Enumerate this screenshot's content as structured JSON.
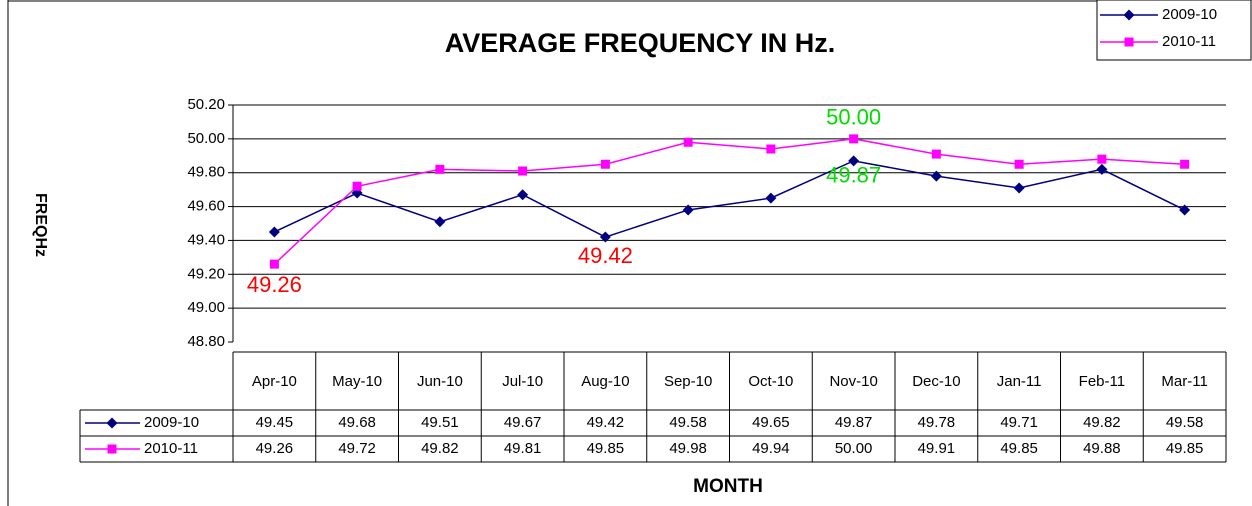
{
  "chart_data": {
    "type": "line",
    "title": "AVERAGE FREQUENCY IN Hz.",
    "x_label": "MONTH",
    "y_label": "FREQHz",
    "categories": [
      "Apr-10",
      "May-10",
      "Jun-10",
      "Jul-10",
      "Aug-10",
      "Sep-10",
      "Oct-10",
      "Nov-10",
      "Dec-10",
      "Jan-11",
      "Feb-11",
      "Mar-11"
    ],
    "series": [
      {
        "name": "2009-10",
        "color": "#000080",
        "marker": "diamond",
        "values": [
          49.45,
          49.68,
          49.51,
          49.67,
          49.42,
          49.58,
          49.65,
          49.87,
          49.78,
          49.71,
          49.82,
          49.58
        ]
      },
      {
        "name": "2010-11",
        "color": "#ff00ff",
        "marker": "square",
        "values": [
          49.26,
          49.72,
          49.82,
          49.81,
          49.85,
          49.98,
          49.94,
          50,
          49.91,
          49.85,
          49.88,
          49.85
        ],
        "value_labels": [
          "49.26",
          "49.72",
          "49.82",
          "49.81",
          "49.85",
          "49.98",
          "49.94",
          "50.00",
          "49.91",
          "49.85",
          "49.88",
          "49.85"
        ]
      }
    ],
    "ylim": [
      48.8,
      50.2
    ],
    "yticks": [
      {
        "value": 48.8,
        "label": "48.80"
      },
      {
        "value": 49,
        "label": "49.00"
      },
      {
        "value": 49.2,
        "label": "49.20"
      },
      {
        "value": 49.4,
        "label": "49.40"
      },
      {
        "value": 49.6,
        "label": "49.60"
      },
      {
        "value": 49.8,
        "label": "49.80"
      },
      {
        "value": 50,
        "label": "50.00"
      },
      {
        "value": 50.2,
        "label": "50.20"
      }
    ],
    "grid": true,
    "legend": "top-right",
    "data_table": true
  }
}
